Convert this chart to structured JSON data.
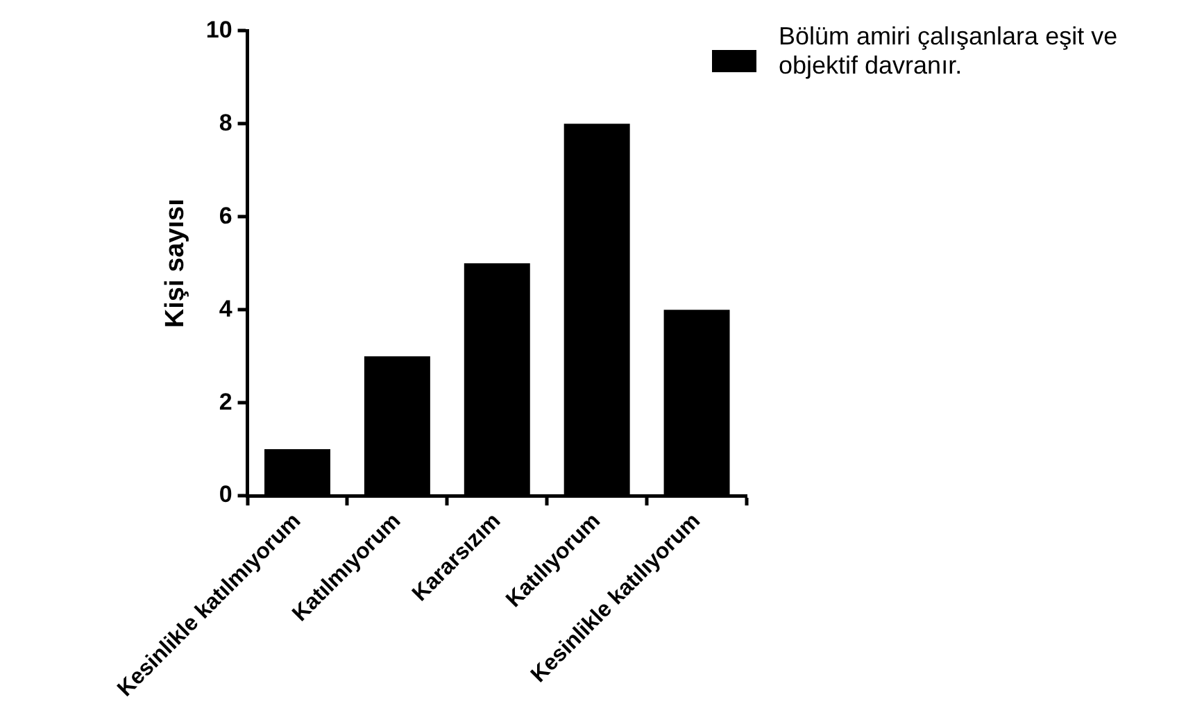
{
  "chart_data": {
    "type": "bar",
    "ylabel": "Kişi sayısı",
    "categories": [
      "Kesinlikle katılmıyorum",
      "Katılmıyorum",
      "Kararsızım",
      "Katılıyorum",
      "Kesinlikle katılıyorum"
    ],
    "series": [
      {
        "name": "Bölüm amiri çalışanlara eşit ve objektif davranır.",
        "color": "#000000",
        "values": [
          1,
          3,
          5,
          8,
          4
        ]
      }
    ],
    "ylim": [
      0,
      10
    ],
    "yticks": [
      0,
      2,
      4,
      6,
      8,
      10
    ],
    "grid": false,
    "legend": "top right"
  }
}
